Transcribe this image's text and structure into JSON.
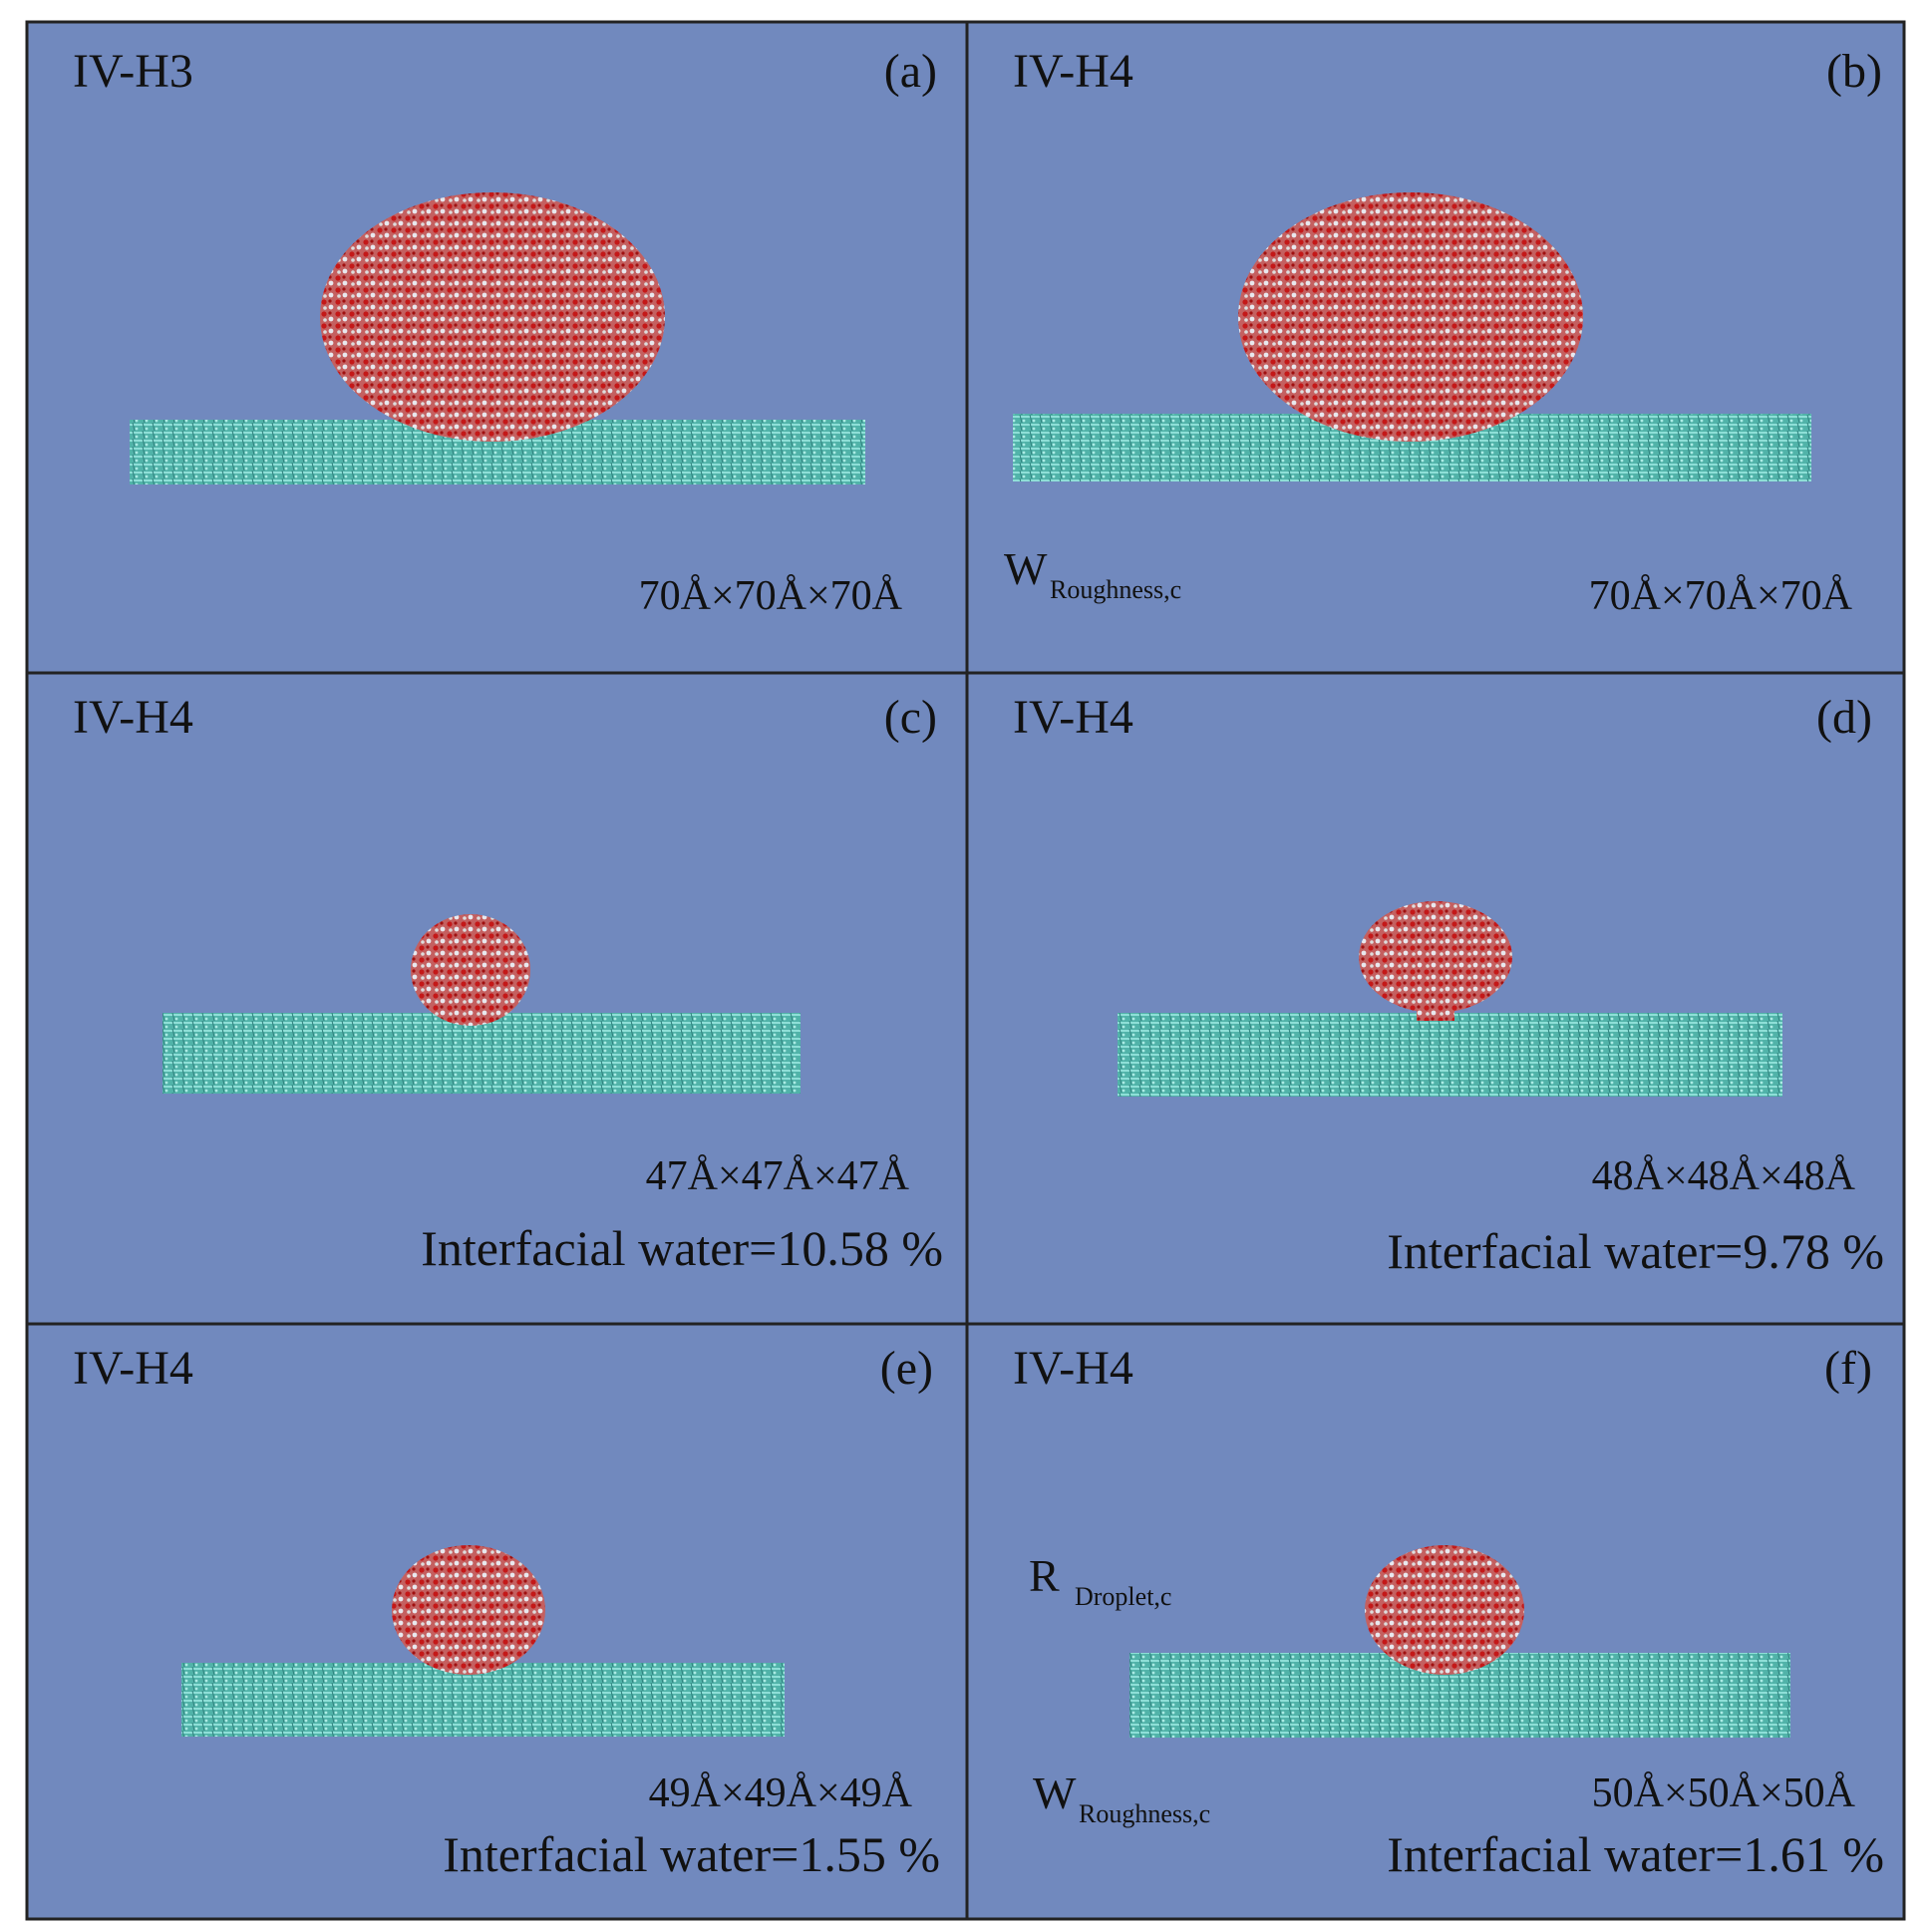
{
  "panels": [
    {
      "tag": "IV-H3",
      "label": "(a)",
      "box_size": "70Å×70Å×70Å"
    },
    {
      "tag": "IV-H4",
      "label": "(b)",
      "box_size": "70Å×70Å×70Å",
      "annotations": [
        {
          "symbol": "W",
          "subscript": "Roughness,c"
        }
      ]
    },
    {
      "tag": "IV-H4",
      "label": "(c)",
      "box_size": "47Å×47Å×47Å",
      "interfacial_water": "Interfacial water=10.58 %"
    },
    {
      "tag": "IV-H4",
      "label": "(d)",
      "box_size": "48Å×48Å×48Å",
      "interfacial_water": "Interfacial water=9.78 %"
    },
    {
      "tag": "IV-H4",
      "label": "(e)",
      "box_size": "49Å×49Å×49Å",
      "interfacial_water": "Interfacial water=1.55 %"
    },
    {
      "tag": "IV-H4",
      "label": "(f)",
      "box_size": "50Å×50Å×50Å",
      "interfacial_water": "Interfacial water=1.61 %",
      "annotations": [
        {
          "symbol": "R",
          "subscript": "Droplet,c"
        },
        {
          "symbol": "W",
          "subscript": "Roughness,c"
        }
      ]
    }
  ]
}
